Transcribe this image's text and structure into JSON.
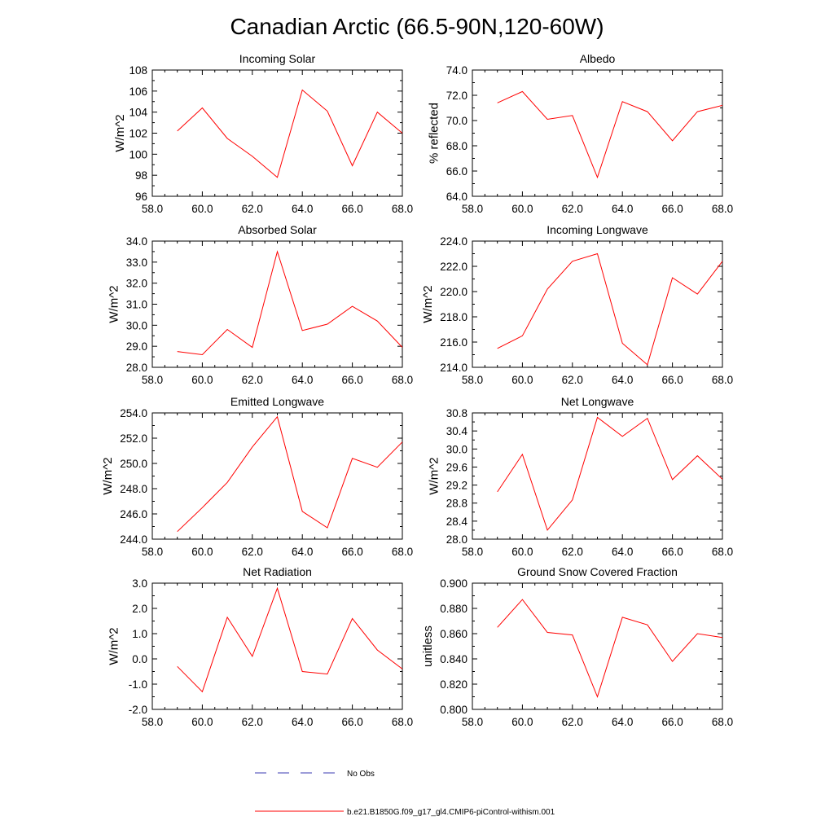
{
  "title": "Canadian Arctic (66.5-90N,120-60W)",
  "chart_data": [
    {
      "type": "line",
      "title": "Incoming Solar",
      "ylabel": "W/m^2",
      "xlabel": "",
      "xlim": [
        58,
        68
      ],
      "xticks": [
        "58.0",
        "60.0",
        "62.0",
        "64.0",
        "66.0",
        "68.0"
      ],
      "ylim": [
        96,
        108
      ],
      "yticks": [
        "96",
        "98",
        "100",
        "102",
        "104",
        "106",
        "108"
      ],
      "x": [
        59,
        60,
        61,
        62,
        63,
        64,
        65,
        66,
        67,
        68
      ],
      "series": [
        {
          "name": "b.e21.B1850G.f09_g17_gl4.CMIP6-piControl-withism.001",
          "values": [
            102.2,
            104.4,
            101.5,
            99.8,
            97.8,
            106.1,
            104.1,
            98.9,
            104.0,
            102.0
          ]
        }
      ]
    },
    {
      "type": "line",
      "title": "Albedo",
      "ylabel": "% reflected",
      "xlabel": "",
      "xlim": [
        58,
        68
      ],
      "xticks": [
        "58.0",
        "60.0",
        "62.0",
        "64.0",
        "66.0",
        "68.0"
      ],
      "ylim": [
        64,
        74
      ],
      "yticks": [
        "64.0",
        "66.0",
        "68.0",
        "70.0",
        "72.0",
        "74.0"
      ],
      "x": [
        59,
        60,
        61,
        62,
        63,
        64,
        65,
        66,
        67,
        68
      ],
      "series": [
        {
          "name": "b.e21.B1850G.f09_g17_gl4.CMIP6-piControl-withism.001",
          "values": [
            71.4,
            72.3,
            70.1,
            70.4,
            65.5,
            71.5,
            70.7,
            68.4,
            70.7,
            71.2
          ]
        }
      ]
    },
    {
      "type": "line",
      "title": "Absorbed Solar",
      "ylabel": "W/m^2",
      "xlabel": "",
      "xlim": [
        58,
        68
      ],
      "xticks": [
        "58.0",
        "60.0",
        "62.0",
        "64.0",
        "66.0",
        "68.0"
      ],
      "ylim": [
        28,
        34
      ],
      "yticks": [
        "28.0",
        "29.0",
        "30.0",
        "31.0",
        "32.0",
        "33.0",
        "34.0"
      ],
      "x": [
        59,
        60,
        61,
        62,
        63,
        64,
        65,
        66,
        67,
        68
      ],
      "series": [
        {
          "name": "b.e21.B1850G.f09_g17_gl4.CMIP6-piControl-withism.001",
          "values": [
            28.75,
            28.6,
            29.8,
            28.95,
            33.5,
            29.75,
            30.05,
            30.9,
            30.2,
            28.95
          ]
        }
      ]
    },
    {
      "type": "line",
      "title": "Incoming Longwave",
      "ylabel": "W/m^2",
      "xlabel": "",
      "xlim": [
        58,
        68
      ],
      "xticks": [
        "58.0",
        "60.0",
        "62.0",
        "64.0",
        "66.0",
        "68.0"
      ],
      "ylim": [
        214,
        224
      ],
      "yticks": [
        "214.0",
        "216.0",
        "218.0",
        "220.0",
        "222.0",
        "224.0"
      ],
      "x": [
        59,
        60,
        61,
        62,
        63,
        64,
        65,
        66,
        67,
        68
      ],
      "series": [
        {
          "name": "b.e21.B1850G.f09_g17_gl4.CMIP6-piControl-withism.001",
          "values": [
            215.5,
            216.5,
            220.2,
            222.4,
            223.0,
            215.9,
            214.2,
            221.1,
            219.8,
            222.4
          ]
        }
      ]
    },
    {
      "type": "line",
      "title": "Emitted Longwave",
      "ylabel": "W/m^2",
      "xlabel": "",
      "xlim": [
        58,
        68
      ],
      "xticks": [
        "58.0",
        "60.0",
        "62.0",
        "64.0",
        "66.0",
        "68.0"
      ],
      "ylim": [
        244,
        254
      ],
      "yticks": [
        "244.0",
        "246.0",
        "248.0",
        "250.0",
        "252.0",
        "254.0"
      ],
      "x": [
        59,
        60,
        61,
        62,
        63,
        64,
        65,
        66,
        67,
        68
      ],
      "series": [
        {
          "name": "b.e21.B1850G.f09_g17_gl4.CMIP6-piControl-withism.001",
          "values": [
            244.6,
            246.5,
            248.5,
            251.3,
            253.7,
            246.2,
            244.9,
            250.4,
            249.7,
            251.7
          ]
        }
      ]
    },
    {
      "type": "line",
      "title": "Net Longwave",
      "ylabel": "W/m^2",
      "xlabel": "",
      "xlim": [
        58,
        68
      ],
      "xticks": [
        "58.0",
        "60.0",
        "62.0",
        "64.0",
        "66.0",
        "68.0"
      ],
      "ylim": [
        28.0,
        30.8
      ],
      "yticks": [
        "28.0",
        "28.4",
        "28.8",
        "29.2",
        "29.6",
        "30.0",
        "30.4",
        "30.8"
      ],
      "x": [
        59,
        60,
        61,
        62,
        63,
        64,
        65,
        66,
        67,
        68
      ],
      "series": [
        {
          "name": "b.e21.B1850G.f09_g17_gl4.CMIP6-piControl-withism.001",
          "values": [
            29.05,
            29.88,
            28.2,
            28.87,
            30.7,
            30.28,
            30.68,
            29.32,
            29.85,
            29.33
          ]
        }
      ]
    },
    {
      "type": "line",
      "title": "Net Radiation",
      "ylabel": "W/m^2",
      "xlabel": "",
      "xlim": [
        58,
        68
      ],
      "xticks": [
        "58.0",
        "60.0",
        "62.0",
        "64.0",
        "66.0",
        "68.0"
      ],
      "ylim": [
        -2,
        3
      ],
      "yticks": [
        "-2.0",
        "-1.0",
        "0.0",
        "1.0",
        "2.0",
        "3.0"
      ],
      "x": [
        59,
        60,
        61,
        62,
        63,
        64,
        65,
        66,
        67,
        68
      ],
      "series": [
        {
          "name": "b.e21.B1850G.f09_g17_gl4.CMIP6-piControl-withism.001",
          "values": [
            -0.3,
            -1.3,
            1.65,
            0.1,
            2.8,
            -0.5,
            -0.6,
            1.6,
            0.35,
            -0.4
          ]
        }
      ]
    },
    {
      "type": "line",
      "title": "Ground Snow Covered Fraction",
      "ylabel": "unitless",
      "xlabel": "",
      "xlim": [
        58,
        68
      ],
      "xticks": [
        "58.0",
        "60.0",
        "62.0",
        "64.0",
        "66.0",
        "68.0"
      ],
      "ylim": [
        0.8,
        0.9
      ],
      "yticks": [
        "0.800",
        "0.820",
        "0.840",
        "0.860",
        "0.880",
        "0.900"
      ],
      "x": [
        59,
        60,
        61,
        62,
        63,
        64,
        65,
        66,
        67,
        68
      ],
      "series": [
        {
          "name": "b.e21.B1850G.f09_g17_gl4.CMIP6-piControl-withism.001",
          "values": [
            0.865,
            0.887,
            0.861,
            0.859,
            0.81,
            0.873,
            0.867,
            0.838,
            0.86,
            0.857
          ]
        }
      ]
    }
  ],
  "legend": {
    "obs_label": "No Obs",
    "obs_color": "#3b3bb3",
    "model_label": "b.e21.B1850G.f09_g17_gl4.CMIP6-piControl-withism.001",
    "model_color": "#ff0000"
  }
}
